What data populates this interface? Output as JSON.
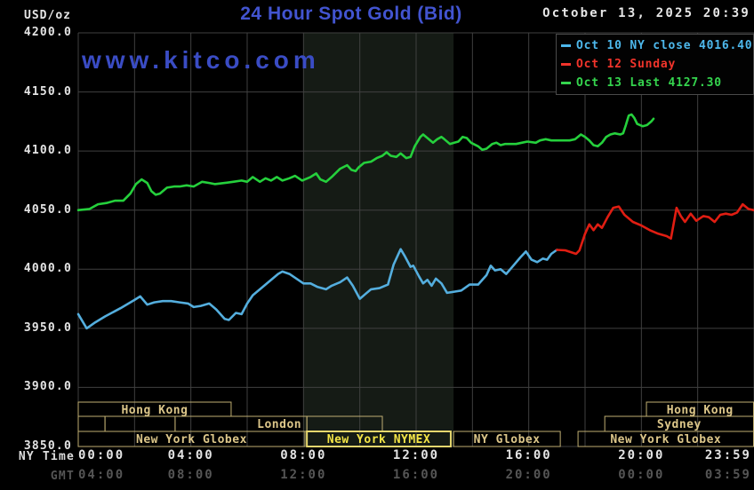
{
  "header": {
    "title": "24 Hour Spot Gold (Bid)",
    "datetime": "October 13, 2025 20:39",
    "y_axis_unit": "USD/oz",
    "watermark": "www.kitco.com"
  },
  "colors": {
    "title_blue": "#4254d0",
    "watermark_blue": "#3a4cc4",
    "grid": "#404040",
    "band": "#151b15",
    "session_border": "#bfae72",
    "session_text": "#dcc689",
    "nymex_border": "#e7d76e",
    "nymex_text": "#f4e547"
  },
  "legend": {
    "items": [
      {
        "label": "Oct 10 NY close 4016.40",
        "color": "#4db8ec"
      },
      {
        "label": "Oct 12 Sunday",
        "color": "#f1342b"
      },
      {
        "label": "Oct 13 Last 4127.30",
        "color": "#35d54e"
      }
    ]
  },
  "axes": {
    "ny_time_label": "NY Time",
    "gmt_label": "GMT",
    "y_ticks": [
      {
        "value": 4200,
        "label": "4200.0"
      },
      {
        "value": 4150,
        "label": "4150.0"
      },
      {
        "value": 4100,
        "label": "4100.0"
      },
      {
        "value": 4050,
        "label": "4050.0"
      },
      {
        "value": 4000,
        "label": "4000.0"
      },
      {
        "value": 3950,
        "label": "3950.0"
      },
      {
        "value": 3900,
        "label": "3900.0"
      },
      {
        "value": 3850,
        "label": "3850.0"
      }
    ],
    "ny_ticks": [
      {
        "hour": 0,
        "label": "00:00",
        "align": "left"
      },
      {
        "hour": 4,
        "label": "04:00",
        "align": "center"
      },
      {
        "hour": 8,
        "label": "08:00",
        "align": "center"
      },
      {
        "hour": 12,
        "label": "12:00",
        "align": "center"
      },
      {
        "hour": 16,
        "label": "16:00",
        "align": "center"
      },
      {
        "hour": 20,
        "label": "20:00",
        "align": "center"
      },
      {
        "hour": 23.983,
        "label": "23:59",
        "align": "right"
      }
    ],
    "gmt_ticks": [
      {
        "hour": 0,
        "label": "04:00",
        "align": "left"
      },
      {
        "hour": 4,
        "label": "08:00",
        "align": "center"
      },
      {
        "hour": 8,
        "label": "12:00",
        "align": "center"
      },
      {
        "hour": 12,
        "label": "16:00",
        "align": "center"
      },
      {
        "hour": 16,
        "label": "20:00",
        "align": "center"
      },
      {
        "hour": 20,
        "label": "00:00",
        "align": "center"
      },
      {
        "hour": 23.983,
        "label": "03:59",
        "align": "right"
      }
    ]
  },
  "chart_data": {
    "type": "line",
    "title": "24 Hour Spot Gold (Bid)",
    "xlabel": "NY Time (hours)",
    "ylabel": "USD/oz",
    "xlim": [
      0,
      24
    ],
    "ylim": [
      3850,
      4200
    ],
    "grid": {
      "x_step_hours": 2,
      "y_step": 50
    },
    "shaded_band_hours": [
      8.0,
      13.33
    ],
    "series": [
      {
        "name": "Oct 10 NY close 4016.40",
        "color": "#54aede",
        "points": [
          [
            0,
            3962
          ],
          [
            0.3,
            3950
          ],
          [
            0.6,
            3955
          ],
          [
            0.95,
            3960
          ],
          [
            1.5,
            3967
          ],
          [
            2.0,
            3974
          ],
          [
            2.2,
            3977
          ],
          [
            2.45,
            3970
          ],
          [
            2.7,
            3972
          ],
          [
            3.0,
            3973
          ],
          [
            3.3,
            3973
          ],
          [
            3.6,
            3972
          ],
          [
            3.9,
            3971
          ],
          [
            4.1,
            3968
          ],
          [
            4.35,
            3969
          ],
          [
            4.65,
            3971
          ],
          [
            4.9,
            3966
          ],
          [
            5.2,
            3958
          ],
          [
            5.35,
            3957
          ],
          [
            5.6,
            3963
          ],
          [
            5.8,
            3962
          ],
          [
            6.0,
            3971
          ],
          [
            6.2,
            3978
          ],
          [
            6.5,
            3984
          ],
          [
            6.8,
            3990
          ],
          [
            7.1,
            3996
          ],
          [
            7.25,
            3998
          ],
          [
            7.5,
            3996
          ],
          [
            7.75,
            3992
          ],
          [
            8.0,
            3988
          ],
          [
            8.25,
            3988
          ],
          [
            8.5,
            3985
          ],
          [
            8.8,
            3983
          ],
          [
            9.0,
            3986
          ],
          [
            9.3,
            3989
          ],
          [
            9.55,
            3993
          ],
          [
            9.75,
            3986
          ],
          [
            10.0,
            3975
          ],
          [
            10.2,
            3979
          ],
          [
            10.4,
            3983
          ],
          [
            10.7,
            3984
          ],
          [
            11.0,
            3987
          ],
          [
            11.2,
            4004
          ],
          [
            11.45,
            4017
          ],
          [
            11.6,
            4011
          ],
          [
            11.8,
            4002
          ],
          [
            11.9,
            4003
          ],
          [
            12.1,
            3994
          ],
          [
            12.25,
            3988
          ],
          [
            12.4,
            3991
          ],
          [
            12.55,
            3986
          ],
          [
            12.7,
            3992
          ],
          [
            12.9,
            3988
          ],
          [
            13.1,
            3980
          ],
          [
            13.35,
            3981
          ],
          [
            13.6,
            3982
          ],
          [
            13.9,
            3987
          ],
          [
            14.2,
            3987
          ],
          [
            14.5,
            3995
          ],
          [
            14.65,
            4003
          ],
          [
            14.8,
            3999
          ],
          [
            15.0,
            4000
          ],
          [
            15.2,
            3996
          ],
          [
            15.45,
            4003
          ],
          [
            15.7,
            4010
          ],
          [
            15.9,
            4015
          ],
          [
            16.1,
            4008
          ],
          [
            16.3,
            4006
          ],
          [
            16.5,
            4009
          ],
          [
            16.65,
            4008
          ],
          [
            16.8,
            4013
          ],
          [
            17.0,
            4016.4
          ]
        ]
      },
      {
        "name": "Oct 12 Sunday",
        "color": "#e01d12",
        "points": [
          [
            17.0,
            4016.4
          ],
          [
            17.3,
            4016
          ],
          [
            17.68,
            4013
          ],
          [
            17.8,
            4016
          ],
          [
            18.0,
            4030
          ],
          [
            18.15,
            4038
          ],
          [
            18.3,
            4033
          ],
          [
            18.45,
            4038
          ],
          [
            18.6,
            4035
          ],
          [
            18.8,
            4044
          ],
          [
            19.0,
            4052
          ],
          [
            19.2,
            4053
          ],
          [
            19.4,
            4046
          ],
          [
            19.7,
            4040
          ],
          [
            20.0,
            4037
          ],
          [
            20.3,
            4033
          ],
          [
            20.6,
            4030
          ],
          [
            20.9,
            4028
          ],
          [
            21.05,
            4026
          ],
          [
            21.25,
            4052
          ],
          [
            21.4,
            4045
          ],
          [
            21.55,
            4040
          ],
          [
            21.75,
            4047
          ],
          [
            21.95,
            4041
          ],
          [
            22.2,
            4045
          ],
          [
            22.4,
            4044
          ],
          [
            22.6,
            4040
          ],
          [
            22.8,
            4046
          ],
          [
            23.0,
            4047
          ],
          [
            23.2,
            4046
          ],
          [
            23.4,
            4048
          ],
          [
            23.6,
            4055
          ],
          [
            23.8,
            4051
          ],
          [
            23.98,
            4050
          ]
        ]
      },
      {
        "name": "Oct 13 Last 4127.30",
        "color": "#25d03c",
        "points": [
          [
            0,
            4050
          ],
          [
            0.4,
            4051
          ],
          [
            0.7,
            4055
          ],
          [
            1.0,
            4056
          ],
          [
            1.3,
            4058
          ],
          [
            1.6,
            4058
          ],
          [
            1.85,
            4064
          ],
          [
            2.05,
            4072
          ],
          [
            2.25,
            4076
          ],
          [
            2.45,
            4073
          ],
          [
            2.6,
            4066
          ],
          [
            2.75,
            4063
          ],
          [
            2.9,
            4064
          ],
          [
            3.15,
            4069
          ],
          [
            3.4,
            4070
          ],
          [
            3.6,
            4070
          ],
          [
            3.85,
            4071
          ],
          [
            4.1,
            4070
          ],
          [
            4.4,
            4074
          ],
          [
            4.65,
            4073
          ],
          [
            4.85,
            4072
          ],
          [
            5.2,
            4073
          ],
          [
            5.5,
            4074
          ],
          [
            5.8,
            4075
          ],
          [
            6.0,
            4074
          ],
          [
            6.2,
            4078
          ],
          [
            6.45,
            4074
          ],
          [
            6.65,
            4077
          ],
          [
            6.85,
            4075
          ],
          [
            7.05,
            4078
          ],
          [
            7.25,
            4075
          ],
          [
            7.5,
            4077
          ],
          [
            7.7,
            4079
          ],
          [
            7.95,
            4075
          ],
          [
            8.25,
            4078
          ],
          [
            8.45,
            4081
          ],
          [
            8.6,
            4076
          ],
          [
            8.8,
            4074
          ],
          [
            9.0,
            4078
          ],
          [
            9.3,
            4085
          ],
          [
            9.55,
            4088
          ],
          [
            9.7,
            4084
          ],
          [
            9.85,
            4083
          ],
          [
            9.95,
            4086
          ],
          [
            10.15,
            4090
          ],
          [
            10.4,
            4091
          ],
          [
            10.6,
            4094
          ],
          [
            10.8,
            4096
          ],
          [
            10.95,
            4099
          ],
          [
            11.1,
            4096
          ],
          [
            11.3,
            4095
          ],
          [
            11.45,
            4098
          ],
          [
            11.65,
            4094
          ],
          [
            11.8,
            4095
          ],
          [
            11.95,
            4104
          ],
          [
            12.15,
            4112
          ],
          [
            12.25,
            4114
          ],
          [
            12.4,
            4111
          ],
          [
            12.6,
            4107
          ],
          [
            12.75,
            4110
          ],
          [
            12.9,
            4112
          ],
          [
            13.0,
            4110
          ],
          [
            13.2,
            4106
          ],
          [
            13.35,
            4107
          ],
          [
            13.5,
            4108
          ],
          [
            13.65,
            4112
          ],
          [
            13.8,
            4111
          ],
          [
            13.95,
            4107
          ],
          [
            14.2,
            4104
          ],
          [
            14.35,
            4101
          ],
          [
            14.5,
            4102
          ],
          [
            14.7,
            4106
          ],
          [
            14.85,
            4107
          ],
          [
            15.0,
            4105
          ],
          [
            15.15,
            4106
          ],
          [
            15.3,
            4106
          ],
          [
            15.55,
            4106
          ],
          [
            15.75,
            4107
          ],
          [
            15.95,
            4108
          ],
          [
            16.25,
            4107
          ],
          [
            16.4,
            4109
          ],
          [
            16.6,
            4110
          ],
          [
            16.8,
            4109
          ],
          [
            17.0,
            4109
          ],
          [
            17.2,
            4109
          ],
          [
            17.45,
            4109
          ],
          [
            17.65,
            4110
          ],
          [
            17.85,
            4114
          ],
          [
            18.0,
            4112
          ],
          [
            18.15,
            4109
          ],
          [
            18.3,
            4105
          ],
          [
            18.45,
            4104
          ],
          [
            18.6,
            4107
          ],
          [
            18.75,
            4112
          ],
          [
            18.9,
            4114
          ],
          [
            19.05,
            4115
          ],
          [
            19.25,
            4114
          ],
          [
            19.35,
            4115
          ],
          [
            19.45,
            4122
          ],
          [
            19.55,
            4130
          ],
          [
            19.65,
            4131
          ],
          [
            19.75,
            4128
          ],
          [
            19.85,
            4123
          ],
          [
            19.95,
            4122
          ],
          [
            20.05,
            4121
          ],
          [
            20.2,
            4122
          ],
          [
            20.35,
            4125
          ],
          [
            20.43,
            4127.3
          ]
        ]
      }
    ],
    "sessions": [
      {
        "row": 1,
        "label": "Hong Kong",
        "start_h": 0,
        "end_h": 5.43
      },
      {
        "row": 1,
        "label": "Hong Kong",
        "start_h": 20.18,
        "end_h": 24
      },
      {
        "row": 2,
        "label": "",
        "start_h": 0,
        "end_h": 0.95
      },
      {
        "row": 2,
        "label": "",
        "start_h": 0.95,
        "end_h": 3.44
      },
      {
        "row": 2,
        "label": "London",
        "start_h": 3.44,
        "end_h": 8.12,
        "label_align": "right"
      },
      {
        "row": 2,
        "label": "",
        "start_h": 8.12,
        "end_h": 10.8
      },
      {
        "row": 2,
        "label": "Sydney",
        "start_h": 18.7,
        "end_h": 24
      },
      {
        "row": 3,
        "label": "New York Globex",
        "start_h": 0,
        "end_h": 8.05
      },
      {
        "row": 3,
        "label": "New York NYMEX",
        "start_h": 8.12,
        "end_h": 13.23,
        "highlight": true
      },
      {
        "row": 3,
        "label": "NY Globex",
        "start_h": 13.33,
        "end_h": 17.12
      },
      {
        "row": 3,
        "label": "New York Globex",
        "start_h": 17.75,
        "end_h": 24
      }
    ]
  }
}
